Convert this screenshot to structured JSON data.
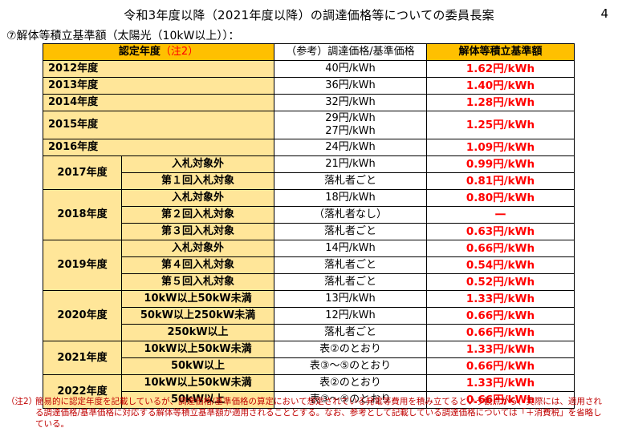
{
  "header": {
    "title": "令和3年度以降（2021年度以降）の調達価格等についての委員長案",
    "page_number": "4",
    "subtitle": "⑦解体等積立基準額（太陽光（10kW以上））："
  },
  "table": {
    "col_headers": {
      "year": "認定年度",
      "year_note": "（注2）",
      "price": "（参考）調達価格/基準価格",
      "amount": "解体等積立基準額"
    },
    "rows": {
      "y2012": {
        "year": "2012年度",
        "price": "40円/kWh",
        "amount": "1.62円/kWh"
      },
      "y2013": {
        "year": "2013年度",
        "price": "36円/kWh",
        "amount": "1.40円/kWh"
      },
      "y2014": {
        "year": "2014年度",
        "price": "32円/kWh",
        "amount": "1.28円/kWh"
      },
      "y2015": {
        "year": "2015年度",
        "price_a": "29円/kWh",
        "price_b": "27円/kWh",
        "amount": "1.25円/kWh"
      },
      "y2016": {
        "year": "2016年度",
        "price": "24円/kWh",
        "amount": "1.09円/kWh"
      },
      "y2017": {
        "year": "2017年度",
        "r1": {
          "sub": "入札対象外",
          "price": "21円/kWh",
          "amount": "0.99円/kWh"
        },
        "r2": {
          "sub": "第１回入札対象",
          "price": "落札者ごと",
          "amount": "0.81円/kWh"
        }
      },
      "y2018": {
        "year": "2018年度",
        "r1": {
          "sub": "入札対象外",
          "price": "18円/kWh",
          "amount": "0.80円/kWh"
        },
        "r2": {
          "sub": "第２回入札対象",
          "price": "（落札者なし）",
          "amount": "ー"
        },
        "r3": {
          "sub": "第３回入札対象",
          "price": "落札者ごと",
          "amount": "0.63円/kWh"
        }
      },
      "y2019": {
        "year": "2019年度",
        "r1": {
          "sub": "入札対象外",
          "price": "14円/kWh",
          "amount": "0.66円/kWh"
        },
        "r2": {
          "sub": "第４回入札対象",
          "price": "落札者ごと",
          "amount": "0.54円/kWh"
        },
        "r3": {
          "sub": "第５回入札対象",
          "price": "落札者ごと",
          "amount": "0.52円/kWh"
        }
      },
      "y2020": {
        "year": "2020年度",
        "r1": {
          "sub": "10kW以上50kW未満",
          "price": "13円/kWh",
          "amount": "1.33円/kWh"
        },
        "r2": {
          "sub": "50kW以上250kW未満",
          "price": "12円/kWh",
          "amount": "0.66円/kWh"
        },
        "r3": {
          "sub": "250kW以上",
          "price": "落札者ごと",
          "amount": "0.66円/kWh"
        }
      },
      "y2021": {
        "year": "2021年度",
        "r1": {
          "sub": "10kW以上50kW未満",
          "price": "表②のとおり",
          "amount": "1.33円/kWh"
        },
        "r2": {
          "sub": "50kW以上",
          "price": "表③～⑤のとおり",
          "amount": "0.66円/kWh"
        }
      },
      "y2022": {
        "year": "2022年度",
        "r1": {
          "sub": "10kW以上50kW未満",
          "price": "表②のとおり",
          "amount": "1.33円/kWh"
        },
        "r2": {
          "sub": "50kW以上",
          "price": "表③～⑤のとおり",
          "amount": "0.66円/kWh"
        }
      }
    }
  },
  "footnote": {
    "label": "（注2）",
    "text": "簡易的に認定年度を記載しているが、調達価格/基準価格の算定において想定されている発電等費用を積み立てるという観点から、実際には、適用される調達価格/基準価格に対応する解体等積立基準額が適用されることとする。なお、参考として記載している調達価格については「＋消費税」を省略している。"
  },
  "colors": {
    "header_bg": "#ffc000",
    "year_bg": "#ffe699",
    "amount_text": "#ff0000",
    "footnote_text": "#c00000"
  }
}
